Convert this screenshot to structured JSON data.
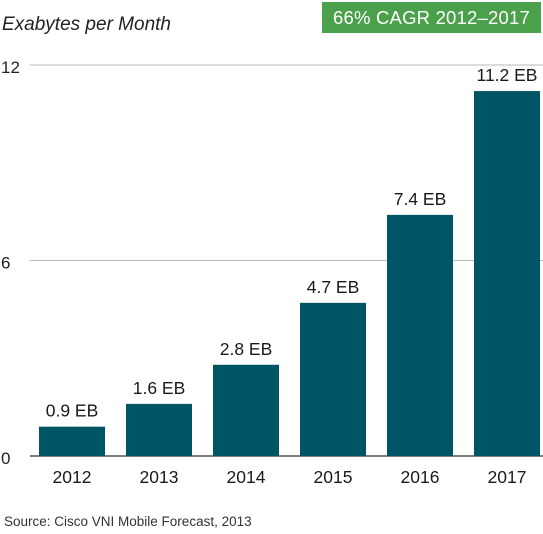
{
  "chart_data": {
    "type": "bar",
    "ylabel": "Exabytes per Month",
    "categories": [
      "2012",
      "2013",
      "2014",
      "2015",
      "2016",
      "2017"
    ],
    "values": [
      0.9,
      1.6,
      2.8,
      4.7,
      7.4,
      11.2
    ],
    "data_labels": [
      "0.9 EB",
      "1.6 EB",
      "2.8 EB",
      "4.7 EB",
      "7.4 EB",
      "11.2 EB"
    ],
    "ylim": [
      0,
      12
    ],
    "y_ticks": [
      "0",
      "6",
      "12"
    ],
    "gridlines": true,
    "annotation": "66% CAGR 2012–2017",
    "source": "Source: Cisco VNI Mobile Forecast, 2013",
    "colors": {
      "bar": "#005565",
      "badge": "#4ba14b",
      "grid": "#b8b8b8",
      "axis": "#555555"
    }
  }
}
